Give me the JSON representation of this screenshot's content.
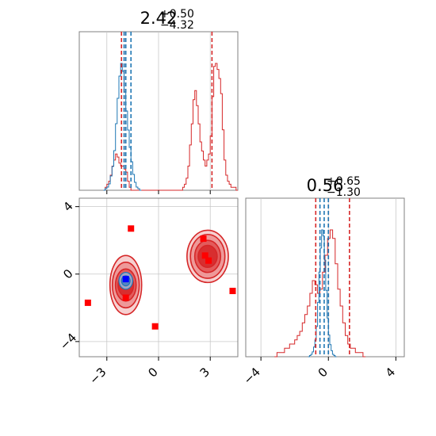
{
  "chart_data": [
    {
      "type": "histogram",
      "panel": "top-left",
      "title": {
        "median": "2.42",
        "plus": "+0.50",
        "minus": "−4.32"
      },
      "xlim": [
        -4.6,
        4.6
      ],
      "x_ticks": [
        -3,
        0,
        3
      ],
      "grid": true,
      "colors": {
        "red": "#d62728",
        "blue": "#1f77b4"
      },
      "red_quantiles": [
        -2.15,
        -1.9,
        3.1
      ],
      "blue_quantiles": [
        -2.0,
        -1.9,
        -1.6
      ],
      "red_hist": {
        "edges_start": -3.2,
        "bin_width": 0.1,
        "counts": [
          0,
          1,
          2,
          3,
          5,
          8,
          10,
          12,
          11,
          9,
          8,
          8,
          7,
          6,
          3,
          1,
          0,
          0,
          0,
          0,
          0,
          0,
          0,
          0,
          0,
          0,
          0,
          0,
          0,
          0,
          0,
          0,
          0,
          0,
          0,
          0,
          0,
          0,
          0,
          0,
          0,
          0,
          0,
          0,
          0,
          0,
          1,
          2,
          4,
          8,
          15,
          22,
          30,
          33,
          28,
          22,
          16,
          13,
          10,
          8,
          10,
          12,
          18,
          31,
          41,
          42,
          40,
          37,
          32,
          20,
          10,
          5,
          3,
          2,
          1,
          1,
          1,
          0
        ]
      },
      "blue_hist": {
        "edges_start": -3.2,
        "bin_width": 0.1,
        "counts": [
          0,
          1,
          2,
          4,
          9,
          15,
          25,
          42,
          58,
          72,
          80,
          75,
          62,
          50,
          38,
          27,
          18,
          10,
          5,
          2,
          1,
          0
        ]
      }
    },
    {
      "type": "contour",
      "panel": "bottom-left",
      "xlim": [
        -4.6,
        4.6
      ],
      "ylim": [
        -4.9,
        4.5
      ],
      "x_ticks": [
        -3,
        0,
        3
      ],
      "y_ticks": [
        -4,
        0,
        4
      ],
      "grid": true,
      "red_regions": [
        {
          "x": -1.9,
          "y": -0.65,
          "rx": [
            0.45,
            0.6,
            0.78,
            0.92
          ],
          "ry": [
            0.65,
            0.95,
            1.35,
            1.75
          ]
        },
        {
          "x": 2.85,
          "y": 1.05,
          "rx": [
            0.55,
            0.75,
            1.0,
            1.2
          ],
          "ry": [
            0.65,
            0.95,
            1.3,
            1.55
          ]
        }
      ],
      "blue_region": {
        "x": -1.9,
        "y": -0.4,
        "rx": [
          0.25,
          0.4
        ],
        "ry": [
          0.3,
          0.5
        ]
      },
      "red_points": [
        {
          "x": -1.6,
          "y": 2.7
        },
        {
          "x": -4.1,
          "y": -1.7
        },
        {
          "x": -1.9,
          "y": -1.4
        },
        {
          "x": -0.2,
          "y": -3.1
        },
        {
          "x": 2.6,
          "y": 2.1
        },
        {
          "x": 2.7,
          "y": 1.1
        },
        {
          "x": 2.9,
          "y": 0.8
        },
        {
          "x": 4.3,
          "y": -1.0
        }
      ],
      "blue_points": [
        {
          "x": -1.9,
          "y": -0.3
        }
      ]
    },
    {
      "type": "histogram",
      "panel": "bottom-right",
      "title": {
        "median": "0.56",
        "plus": "+0.65",
        "minus": "−1.30"
      },
      "xlim": [
        -4.9,
        4.5
      ],
      "x_ticks": [
        -4,
        0,
        4
      ],
      "grid": true,
      "red_quantiles": [
        -0.75,
        0.0,
        1.25
      ],
      "blue_quantiles": [
        -0.5,
        -0.25,
        0.0
      ],
      "red_hist": {
        "edges_start": -3.2,
        "bin_width": 0.15,
        "counts": [
          0,
          1,
          1,
          1,
          2,
          2,
          3,
          3,
          4,
          5,
          6,
          8,
          10,
          12,
          15,
          18,
          17,
          15,
          16,
          20,
          24,
          28,
          30,
          28,
          22,
          16,
          12,
          8,
          5,
          3,
          2,
          2,
          1,
          1,
          1,
          0
        ]
      },
      "blue_hist": {
        "edges_start": -1.2,
        "bin_width": 0.08,
        "counts": [
          0,
          1,
          2,
          4,
          8,
          14,
          25,
          45,
          70,
          90,
          105,
          100,
          80,
          55,
          32,
          18,
          10,
          5,
          2,
          1,
          0
        ]
      }
    }
  ]
}
